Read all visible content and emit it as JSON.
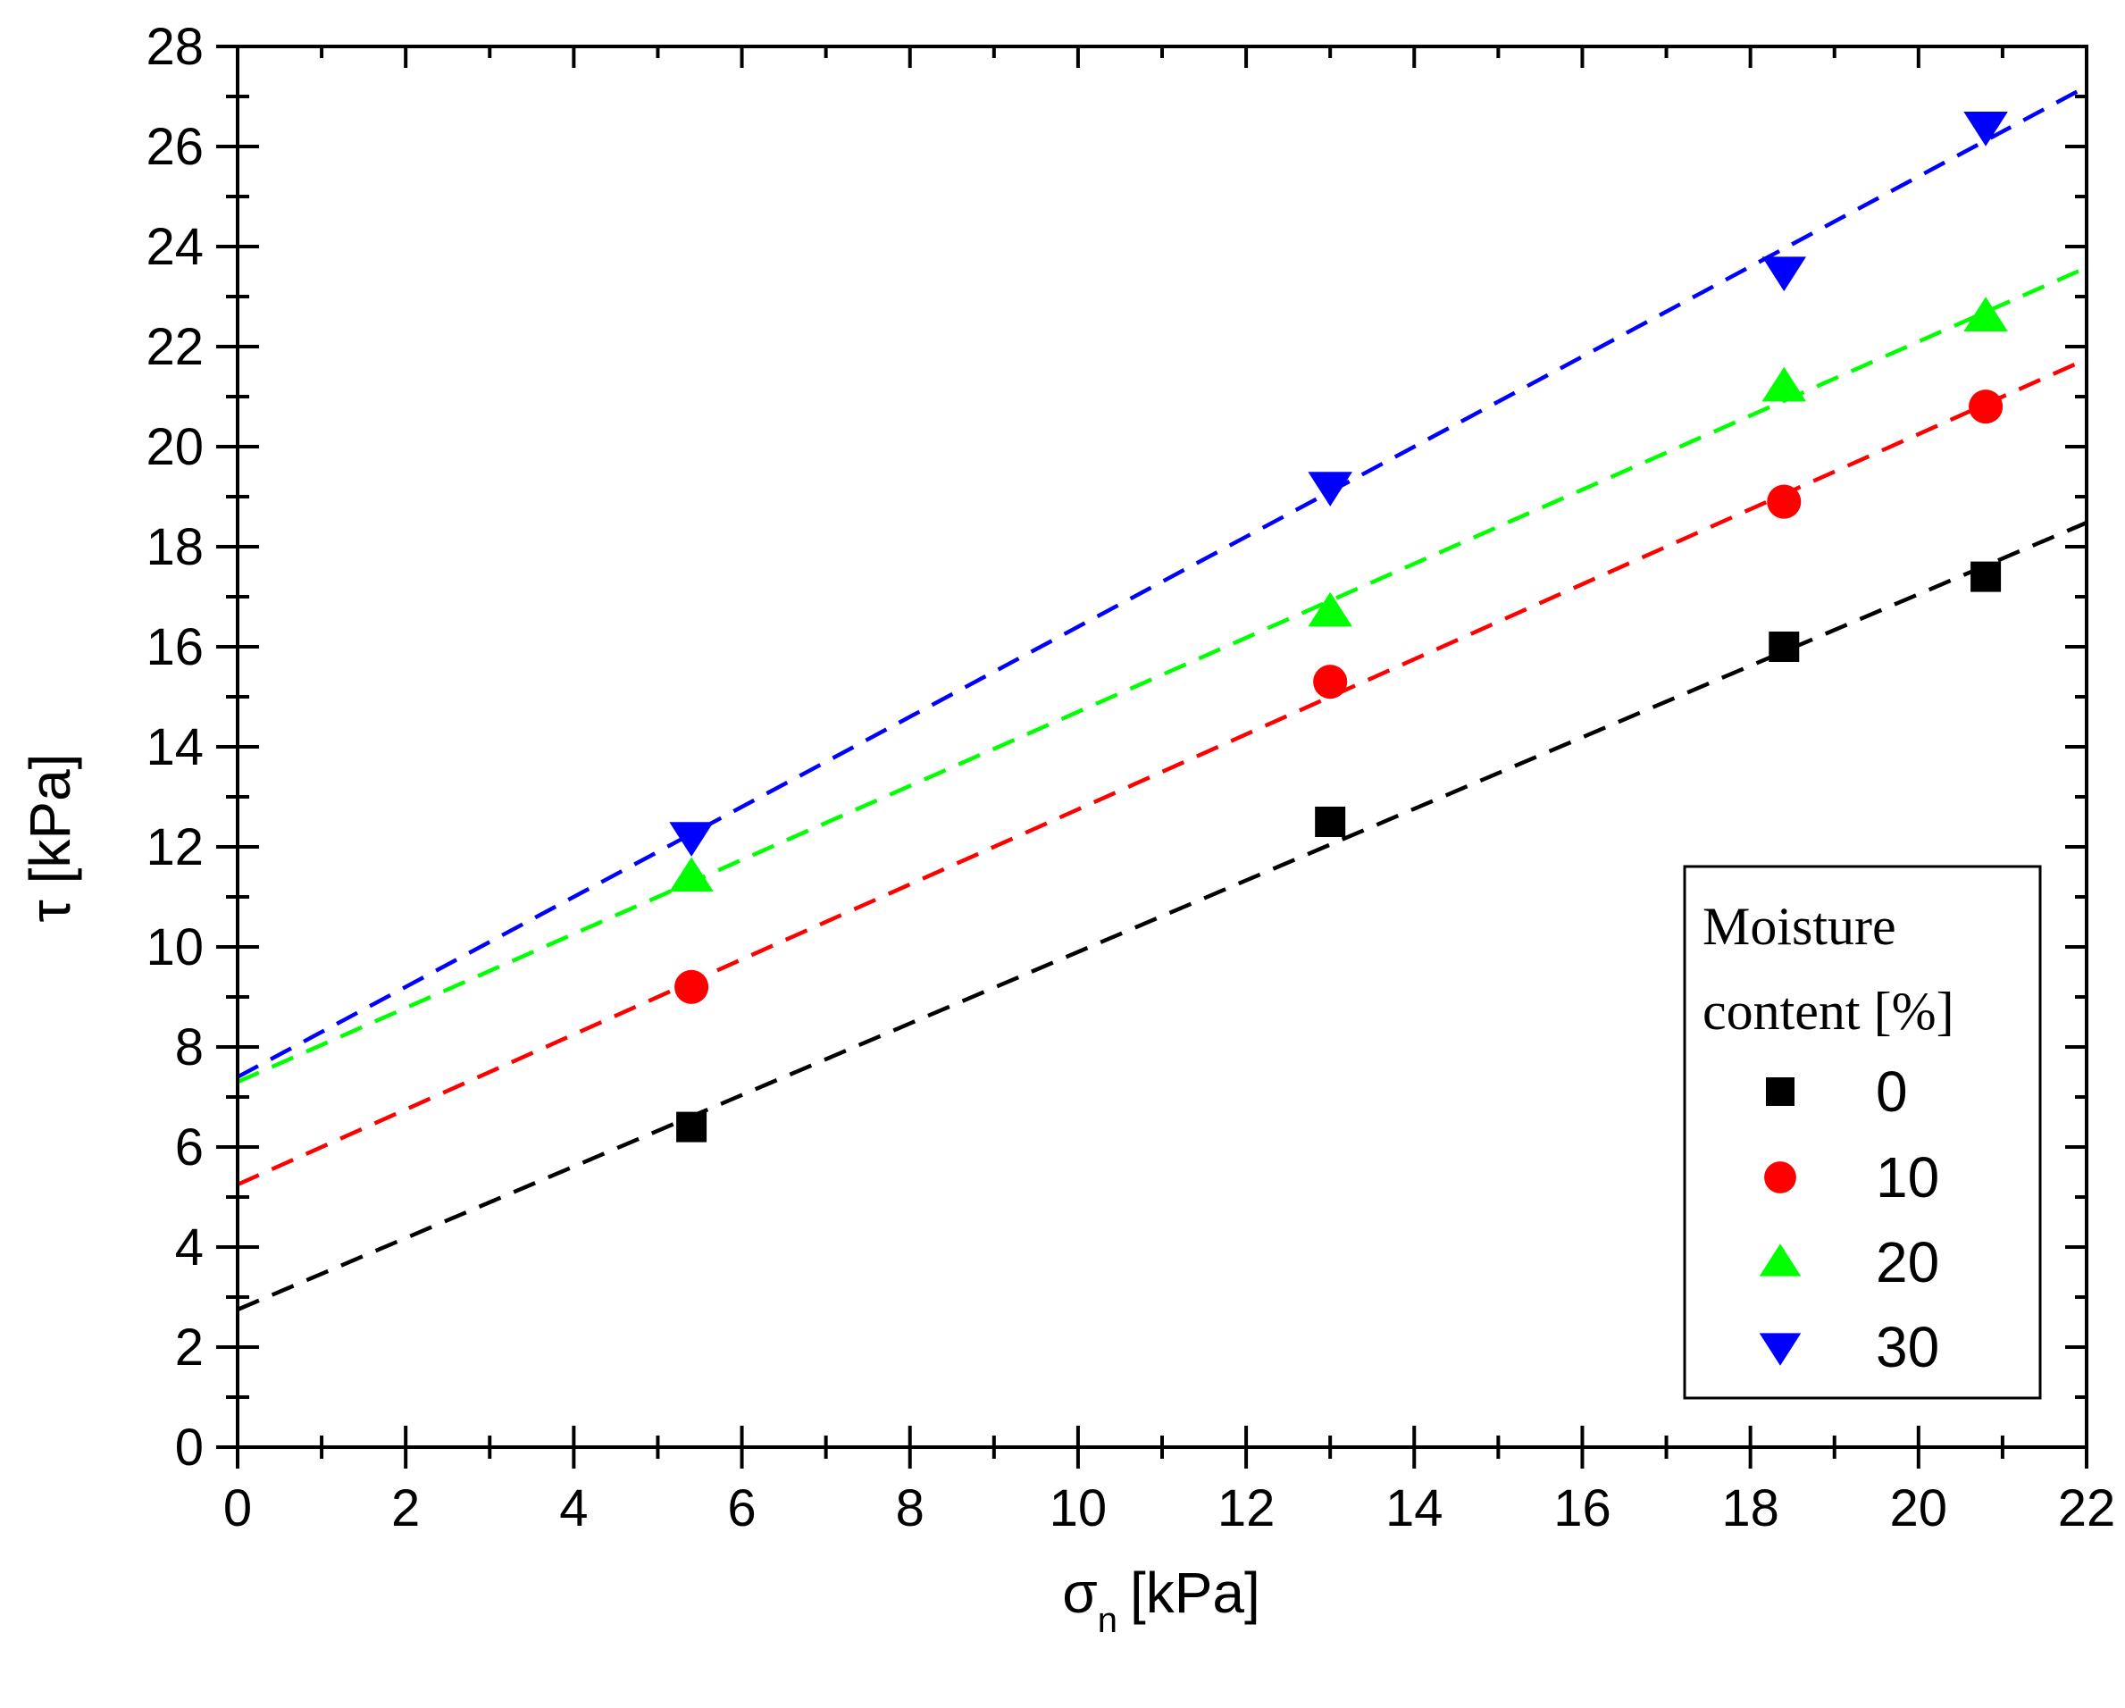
{
  "chart_data": {
    "type": "scatter",
    "title": "",
    "xlabel": "σ",
    "xlabel_sub": "n",
    "xlabel_unit": "[kPa]",
    "ylabel": "τ [kPa]",
    "xlim": [
      0,
      22
    ],
    "ylim": [
      0,
      28
    ],
    "x_ticks": [
      0,
      2,
      4,
      6,
      8,
      10,
      12,
      14,
      16,
      18,
      20,
      22
    ],
    "y_ticks": [
      0,
      2,
      4,
      6,
      8,
      10,
      12,
      14,
      16,
      18,
      20,
      22,
      24,
      26,
      28
    ],
    "grid": false,
    "legend": {
      "title_line1": "Moisture",
      "title_line2": "content [%]",
      "placement": "bottom-right"
    },
    "series": [
      {
        "name": "0",
        "color": "#000000",
        "marker": "square",
        "x": [
          5.4,
          13.0,
          18.4,
          20.8
        ],
        "y": [
          6.4,
          12.5,
          16.0,
          17.4
        ],
        "fit": {
          "intercept": 2.75,
          "slope": 0.715
        }
      },
      {
        "name": "10",
        "color": "#ff0000",
        "marker": "circle",
        "x": [
          5.4,
          13.0,
          18.4,
          20.8
        ],
        "y": [
          9.2,
          15.3,
          18.9,
          20.8
        ],
        "fit": {
          "intercept": 5.25,
          "slope": 0.75
        }
      },
      {
        "name": "20",
        "color": "#00ff00",
        "marker": "triangle-up",
        "x": [
          5.4,
          13.0,
          18.4,
          20.8
        ],
        "y": [
          11.4,
          16.7,
          21.2,
          22.6
        ],
        "fit": {
          "intercept": 7.3,
          "slope": 0.74
        }
      },
      {
        "name": "30",
        "color": "#0000ff",
        "marker": "triangle-down",
        "x": [
          5.4,
          13.0,
          18.4,
          20.8
        ],
        "y": [
          12.2,
          19.2,
          23.5,
          26.4
        ],
        "fit": {
          "intercept": 7.4,
          "slope": 0.9
        }
      }
    ]
  }
}
